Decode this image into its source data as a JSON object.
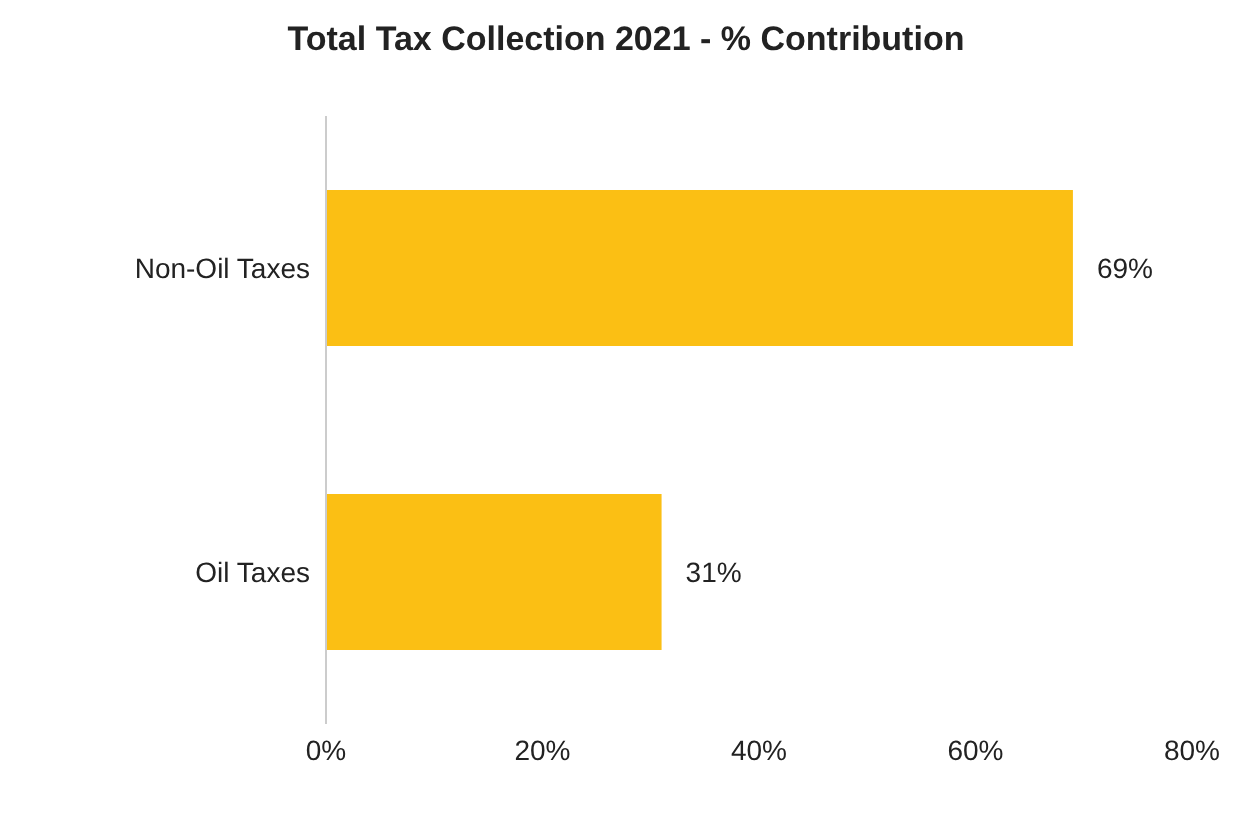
{
  "chart_data": {
    "type": "bar",
    "orientation": "horizontal",
    "title": "Total Tax Collection  2021 - % Contribution",
    "categories": [
      "Non-Oil Taxes",
      "Oil Taxes"
    ],
    "values": [
      69,
      31
    ],
    "value_labels": [
      "69%",
      "31%"
    ],
    "color": "#fbbf14",
    "xlim": [
      0,
      80
    ],
    "xticks": [
      {
        "value": 0,
        "label": "0%"
      },
      {
        "value": 20,
        "label": "20%"
      },
      {
        "value": 40,
        "label": "40%"
      },
      {
        "value": 60,
        "label": "60%"
      },
      {
        "value": 80,
        "label": "80%"
      }
    ],
    "grid": false
  }
}
